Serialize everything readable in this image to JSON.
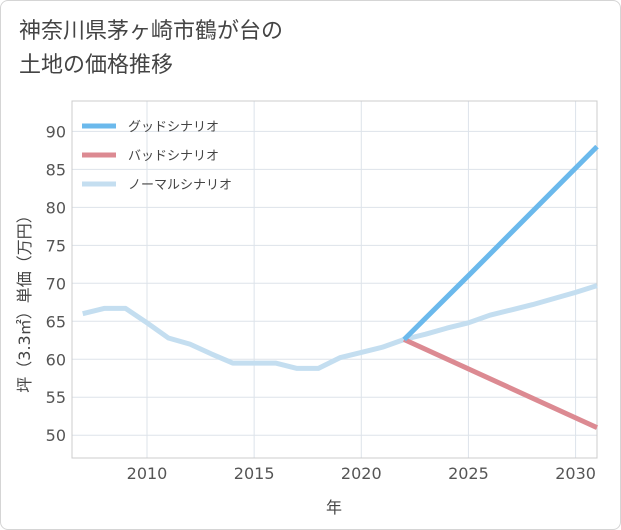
{
  "title": {
    "line1": "神奈川県茅ヶ崎市鶴が台の",
    "line2": "土地の価格推移"
  },
  "chart_data": {
    "type": "line",
    "xlabel": "年",
    "ylabel": "坪（3.3㎡）単価（万円）",
    "xlim": [
      2006.5,
      2031
    ],
    "ylim": [
      47,
      94
    ],
    "xticks": [
      2010,
      2015,
      2020,
      2025,
      2030
    ],
    "yticks": [
      50,
      55,
      60,
      65,
      70,
      75,
      80,
      85,
      90
    ],
    "grid": true,
    "legend_position": "top-left",
    "series": [
      {
        "name": "グッドシナリオ",
        "color": "#6bb9ec",
        "x": [
          2022,
          2025,
          2031
        ],
        "y": [
          62.6,
          71.0,
          88.0
        ]
      },
      {
        "name": "バッドシナリオ",
        "color": "#dc8a92",
        "x": [
          2022,
          2031
        ],
        "y": [
          62.6,
          51.0
        ]
      },
      {
        "name": "ノーマルシナリオ",
        "color": "#c4def0",
        "x": [
          2007,
          2008,
          2009,
          2010,
          2011,
          2012,
          2013,
          2014,
          2015,
          2016,
          2017,
          2018,
          2019,
          2020,
          2021,
          2022,
          2023,
          2024,
          2025,
          2026,
          2027,
          2028,
          2029,
          2030,
          2031
        ],
        "y": [
          66.0,
          66.7,
          66.7,
          64.8,
          62.8,
          62.0,
          60.7,
          59.5,
          59.5,
          59.5,
          58.8,
          58.8,
          60.2,
          60.9,
          61.6,
          62.6,
          63.3,
          64.1,
          64.8,
          65.8,
          66.5,
          67.2,
          68.0,
          68.8,
          69.7
        ]
      }
    ]
  }
}
